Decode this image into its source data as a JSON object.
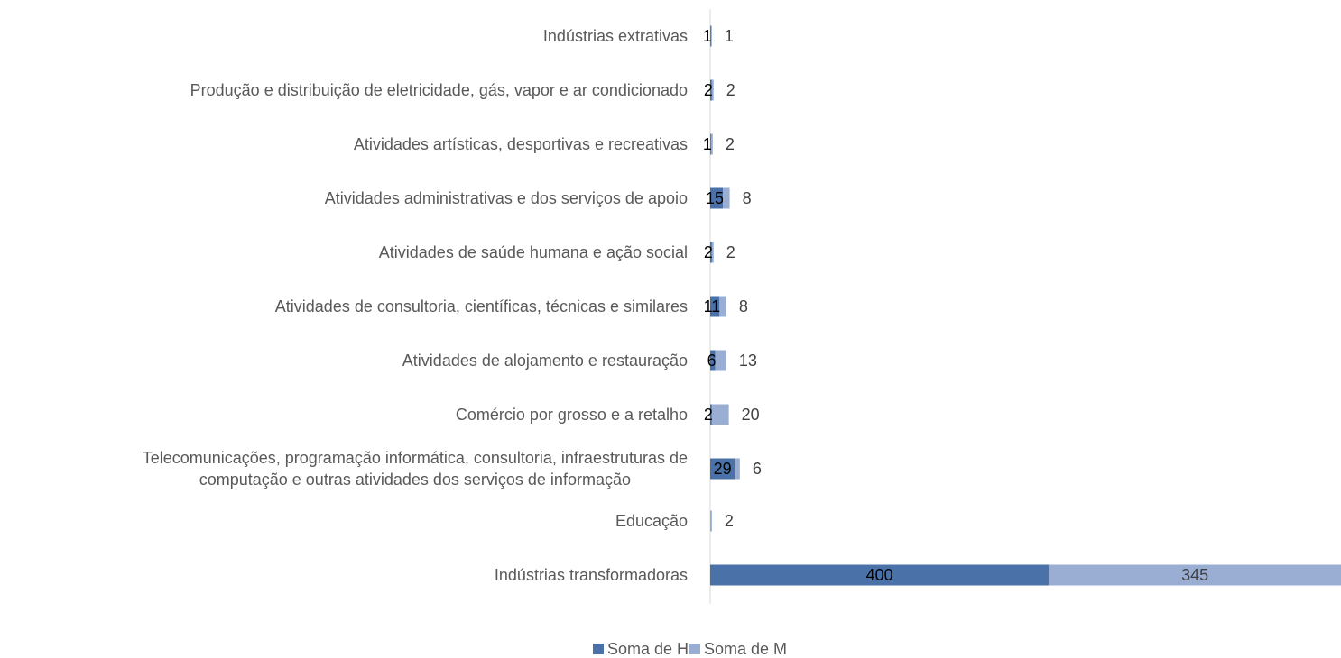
{
  "chart_data": {
    "type": "stacked-bar-horizontal",
    "categories": [
      "Indústrias extrativas",
      "Produção e distribuição de eletricidade, gás, vapor e ar condicionado",
      "Atividades artísticas, desportivas e recreativas",
      "Atividades administrativas e dos serviços de apoio",
      "Atividades de saúde humana e ação social",
      "Atividades de consultoria, científicas, técnicas e similares",
      "Atividades de alojamento e restauração",
      "Comércio por grosso e a retalho",
      "Telecomunicações, programação informática, consultoria, infraestruturas de\ncomputação e outras atividades dos serviços de informação",
      "Educação",
      "Indústrias transformadoras"
    ],
    "series": [
      {
        "name": "Soma de H",
        "color": "#4a72a8",
        "values": [
          1,
          2,
          1,
          15,
          2,
          11,
          6,
          2,
          29,
          null,
          400
        ]
      },
      {
        "name": "Soma de M",
        "color": "#9aaed4",
        "values": [
          1,
          2,
          2,
          8,
          2,
          8,
          13,
          20,
          6,
          2,
          345
        ]
      }
    ],
    "legend": "bottom"
  }
}
